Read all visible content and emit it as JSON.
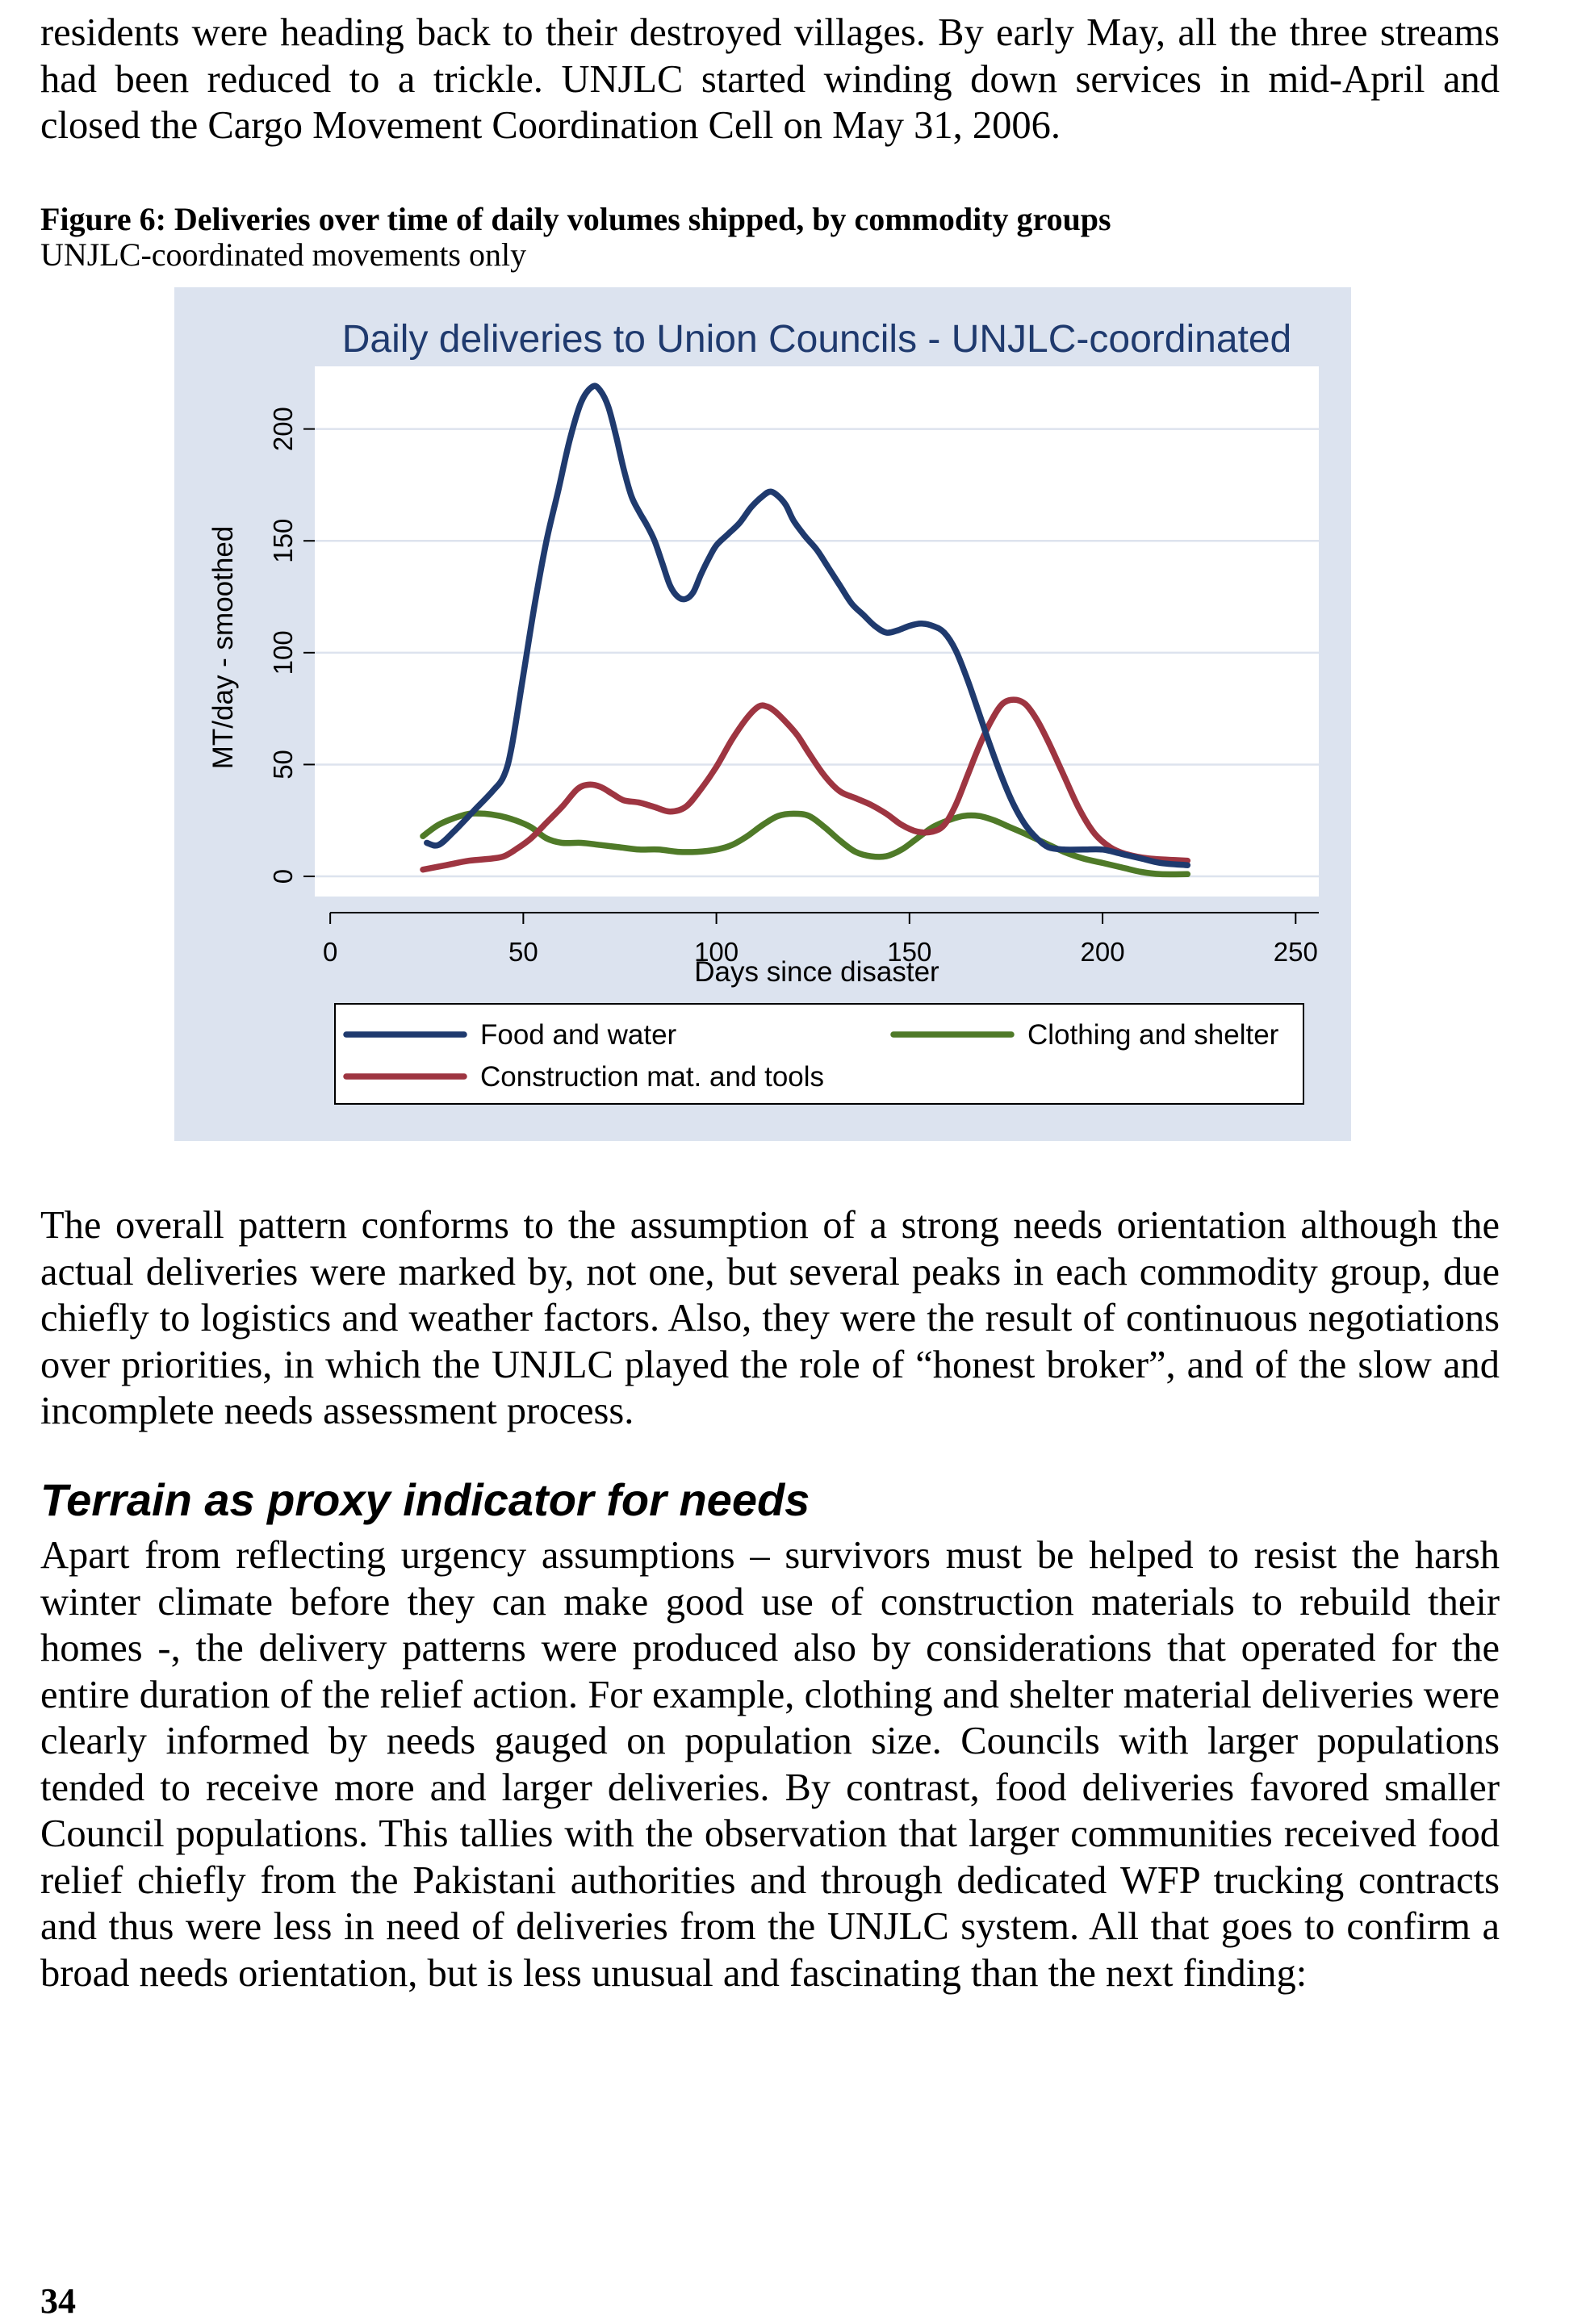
{
  "body": {
    "intro_paragraph": "residents were heading back to their destroyed villages. By early May, all the three streams had been reduced to a trickle. UNJLC started winding down services in mid-April and closed the Cargo Movement Coordination Cell on May 31, 2006.",
    "figure_caption": "Figure 6: Deliveries over time of daily volumes shipped, by commodity groups",
    "figure_subcaption": "UNJLC-coordinated movements only",
    "pattern_paragraph": "The overall pattern conforms to the assumption of a strong needs orientation although the actual deliveries were marked by, not one, but several peaks in each commodity group, due chiefly to logistics and weather factors. Also, they were the result of continuous negotiations over priorities, in which the UNJLC played the role of “honest broker”, and of the slow and incomplete needs assessment process.",
    "section_heading": "Terrain as proxy indicator for needs",
    "terrain_paragraph": "Apart from reflecting urgency assumptions – survivors must be helped to resist the harsh winter climate before they can make good use of construction materials to rebuild their homes -, the delivery patterns were produced also by considerations that operated for the entire duration of the relief action. For example, clothing and shelter material deliveries were clearly informed by needs gauged on population size. Councils with larger populations tended to receive more and larger deliveries. By contrast, food deliveries favored smaller Council populations. This tallies with the observation that larger communities received food relief chiefly from the Pakistani authorities and through dedicated WFP trucking contracts and thus were less in need of deliveries from the UNJLC system.  All that goes to confirm a broad needs orientation, but is less unusual and fascinating than the next finding:",
    "page_number": "34"
  },
  "chart_data": {
    "type": "line",
    "title": "Daily deliveries to Union Councils - UNJLC-coordinated",
    "xlabel": "Days since disaster",
    "ylabel": "MT/day - smoothed",
    "xlim": [
      -4,
      256
    ],
    "ylim": [
      -9,
      228
    ],
    "xticks": [
      0,
      50,
      100,
      150,
      200,
      250
    ],
    "yticks": [
      0,
      50,
      100,
      150,
      200
    ],
    "grid": "horizontal",
    "legend_position": "bottom",
    "background_color": "#dce3ef",
    "plot_color": "#ffffff",
    "series": [
      {
        "name": "Food and water",
        "color": "#1f3a6e",
        "x": [
          25,
          28,
          32,
          37,
          42,
          45,
          47,
          50,
          53,
          56,
          59,
          62,
          65,
          68,
          70,
          72,
          74,
          76,
          78,
          80,
          82,
          84,
          86,
          88,
          90,
          92,
          94,
          96,
          98,
          100,
          103,
          106,
          109,
          112,
          114,
          116,
          118,
          120,
          123,
          126,
          129,
          132,
          135,
          138,
          141,
          144,
          147,
          150,
          153,
          156,
          159,
          162,
          165,
          168,
          171,
          174,
          177,
          180,
          183,
          186,
          190,
          195,
          200,
          205,
          210,
          215,
          222
        ],
        "y": [
          15,
          14,
          20,
          29,
          38,
          45,
          58,
          90,
          122,
          150,
          172,
          195,
          212,
          219,
          217,
          210,
          197,
          182,
          170,
          163,
          157,
          150,
          140,
          130,
          125,
          124,
          127,
          135,
          142,
          148,
          153,
          158,
          165,
          170,
          172,
          170,
          166,
          159,
          152,
          146,
          138,
          130,
          122,
          117,
          112,
          109,
          110,
          112,
          113,
          112,
          109,
          101,
          88,
          73,
          58,
          44,
          32,
          23,
          17,
          13,
          12,
          12,
          12,
          10,
          8,
          6,
          5
        ]
      },
      {
        "name": "Construction mat. and tools",
        "color": "#9e3541",
        "x": [
          24,
          30,
          36,
          42,
          45,
          48,
          52,
          56,
          60,
          64,
          67,
          70,
          73,
          76,
          80,
          84,
          88,
          92,
          96,
          100,
          104,
          108,
          111,
          113,
          115,
          118,
          121,
          124,
          128,
          132,
          136,
          140,
          144,
          148,
          152,
          156,
          159,
          162,
          165,
          168,
          171,
          174,
          177,
          180,
          183,
          186,
          190,
          194,
          198,
          202,
          206,
          212,
          222
        ],
        "y": [
          3,
          5,
          7,
          8,
          9,
          12,
          17,
          24,
          31,
          39,
          41,
          40,
          37,
          34,
          33,
          31,
          29,
          31,
          39,
          49,
          61,
          71,
          76,
          76,
          74,
          69,
          63,
          55,
          45,
          38,
          35,
          32,
          28,
          23,
          20,
          20,
          23,
          32,
          45,
          58,
          69,
          77,
          79,
          77,
          70,
          60,
          45,
          30,
          19,
          13,
          10,
          8,
          7
        ]
      },
      {
        "name": "Clothing and shelter",
        "color": "#4f7a28",
        "x": [
          24,
          28,
          32,
          36,
          40,
          44,
          48,
          52,
          56,
          60,
          65,
          70,
          75,
          80,
          85,
          90,
          95,
          100,
          104,
          108,
          112,
          116,
          120,
          124,
          128,
          132,
          136,
          140,
          144,
          148,
          152,
          156,
          160,
          164,
          168,
          172,
          176,
          180,
          185,
          190,
          195,
          200,
          205,
          210,
          215,
          222
        ],
        "y": [
          18,
          23,
          26,
          28,
          28,
          27,
          25,
          22,
          17,
          15,
          15,
          14,
          13,
          12,
          12,
          11,
          11,
          12,
          14,
          18,
          23,
          27,
          28,
          27,
          22,
          16,
          11,
          9,
          9,
          12,
          17,
          22,
          25,
          27,
          27,
          25,
          22,
          19,
          15,
          11,
          8,
          6,
          4,
          2,
          1,
          1
        ]
      }
    ]
  }
}
